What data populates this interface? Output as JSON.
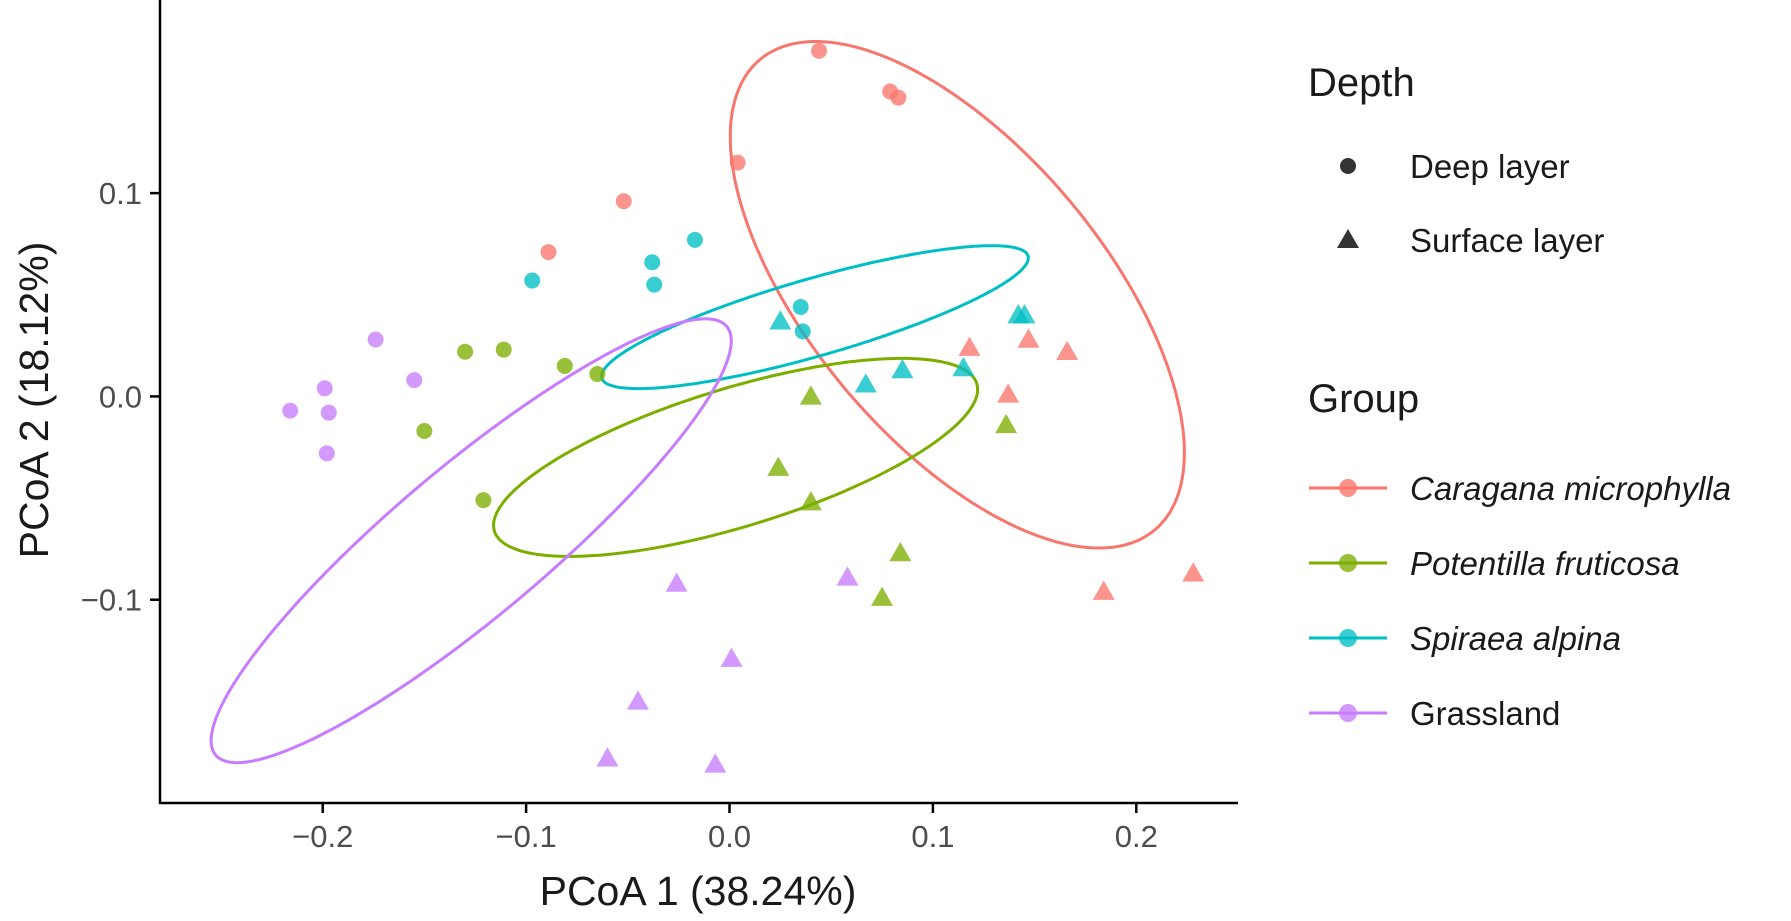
{
  "chart_data": {
    "type": "scatter",
    "title": "",
    "xlabel": "PCoA 1 (38.24%)",
    "ylabel": "PCoA 2 (18.12%)",
    "xlim": [
      -0.28,
      0.25
    ],
    "ylim": [
      -0.2,
      0.195
    ],
    "xticks": [
      -0.2,
      -0.1,
      0.0,
      0.1,
      0.2
    ],
    "xtick_labels": [
      "−0.2",
      "−0.1",
      "0.0",
      "0.1",
      "0.2"
    ],
    "yticks": [
      -0.1,
      0.0,
      0.1
    ],
    "ytick_labels": [
      "−0.1",
      "0.0",
      "0.1"
    ],
    "grid": false,
    "legend_position": "right",
    "legends": {
      "depth": {
        "title": "Depth",
        "items": [
          {
            "label": "Deep layer",
            "shape": "circle"
          },
          {
            "label": "Surface layer",
            "shape": "triangle"
          }
        ]
      },
      "group": {
        "title": "Group",
        "items": [
          {
            "label": "Caragana microphylla",
            "italic": true,
            "color": "#F8766D"
          },
          {
            "label": "Potentilla fruticosa",
            "italic": true,
            "color": "#7CAE00"
          },
          {
            "label": "Spiraea alpina",
            "italic": true,
            "color": "#00BFC4"
          },
          {
            "label": "Grassland",
            "italic": false,
            "color": "#C77CFF"
          }
        ]
      }
    },
    "series": [
      {
        "name": "Caragana microphylla",
        "color": "#F8766D",
        "deep": [
          [
            0.044,
            0.17
          ],
          [
            0.079,
            0.15
          ],
          [
            0.083,
            0.147
          ],
          [
            0.004,
            0.115
          ],
          [
            -0.052,
            0.096
          ],
          [
            -0.089,
            0.071
          ]
        ],
        "surface": [
          [
            0.118,
            0.024
          ],
          [
            0.147,
            0.028
          ],
          [
            0.166,
            0.022
          ],
          [
            0.137,
            0.001
          ],
          [
            0.184,
            -0.096
          ],
          [
            0.228,
            -0.087
          ]
        ],
        "ellipse": {
          "cx": 0.112,
          "cy": 0.05,
          "rx": 0.151,
          "ry": 0.072,
          "angle_deg": -50
        }
      },
      {
        "name": "Potentilla fruticosa",
        "color": "#7CAE00",
        "deep": [
          [
            -0.13,
            0.022
          ],
          [
            -0.111,
            0.023
          ],
          [
            -0.081,
            0.015
          ],
          [
            -0.065,
            0.011
          ],
          [
            -0.15,
            -0.017
          ],
          [
            -0.121,
            -0.051
          ]
        ],
        "surface": [
          [
            0.04,
            0.0
          ],
          [
            0.136,
            -0.014
          ],
          [
            0.024,
            -0.035
          ],
          [
            0.04,
            -0.052
          ],
          [
            0.084,
            -0.077
          ],
          [
            0.075,
            -0.099
          ]
        ],
        "ellipse": {
          "cx": 0.003,
          "cy": -0.03,
          "rx": 0.124,
          "ry": 0.034,
          "angle_deg": 17
        }
      },
      {
        "name": "Spiraea alpina",
        "color": "#00BFC4",
        "deep": [
          [
            -0.017,
            0.077
          ],
          [
            -0.038,
            0.066
          ],
          [
            -0.097,
            0.057
          ],
          [
            -0.037,
            0.055
          ],
          [
            0.035,
            0.044
          ],
          [
            0.036,
            0.032
          ]
        ],
        "surface": [
          [
            0.025,
            0.037
          ],
          [
            0.142,
            0.04
          ],
          [
            0.145,
            0.04
          ],
          [
            0.085,
            0.013
          ],
          [
            0.115,
            0.014
          ],
          [
            0.067,
            0.006
          ]
        ],
        "ellipse": {
          "cx": 0.042,
          "cy": 0.039,
          "rx": 0.109,
          "ry": 0.019,
          "angle_deg": 16
        }
      },
      {
        "name": "Grassland",
        "color": "#C77CFF",
        "deep": [
          [
            -0.174,
            0.028
          ],
          [
            -0.155,
            0.008
          ],
          [
            -0.199,
            0.004
          ],
          [
            -0.216,
            -0.007
          ],
          [
            -0.197,
            -0.008
          ],
          [
            -0.198,
            -0.028
          ]
        ],
        "surface": [
          [
            -0.026,
            -0.092
          ],
          [
            0.001,
            -0.129
          ],
          [
            -0.045,
            -0.15
          ],
          [
            -0.06,
            -0.178
          ],
          [
            -0.007,
            -0.181
          ],
          [
            0.058,
            -0.089
          ]
        ],
        "ellipse": {
          "cx": -0.127,
          "cy": -0.071,
          "rx": 0.164,
          "ry": 0.037,
          "angle_deg": 40
        }
      }
    ]
  }
}
